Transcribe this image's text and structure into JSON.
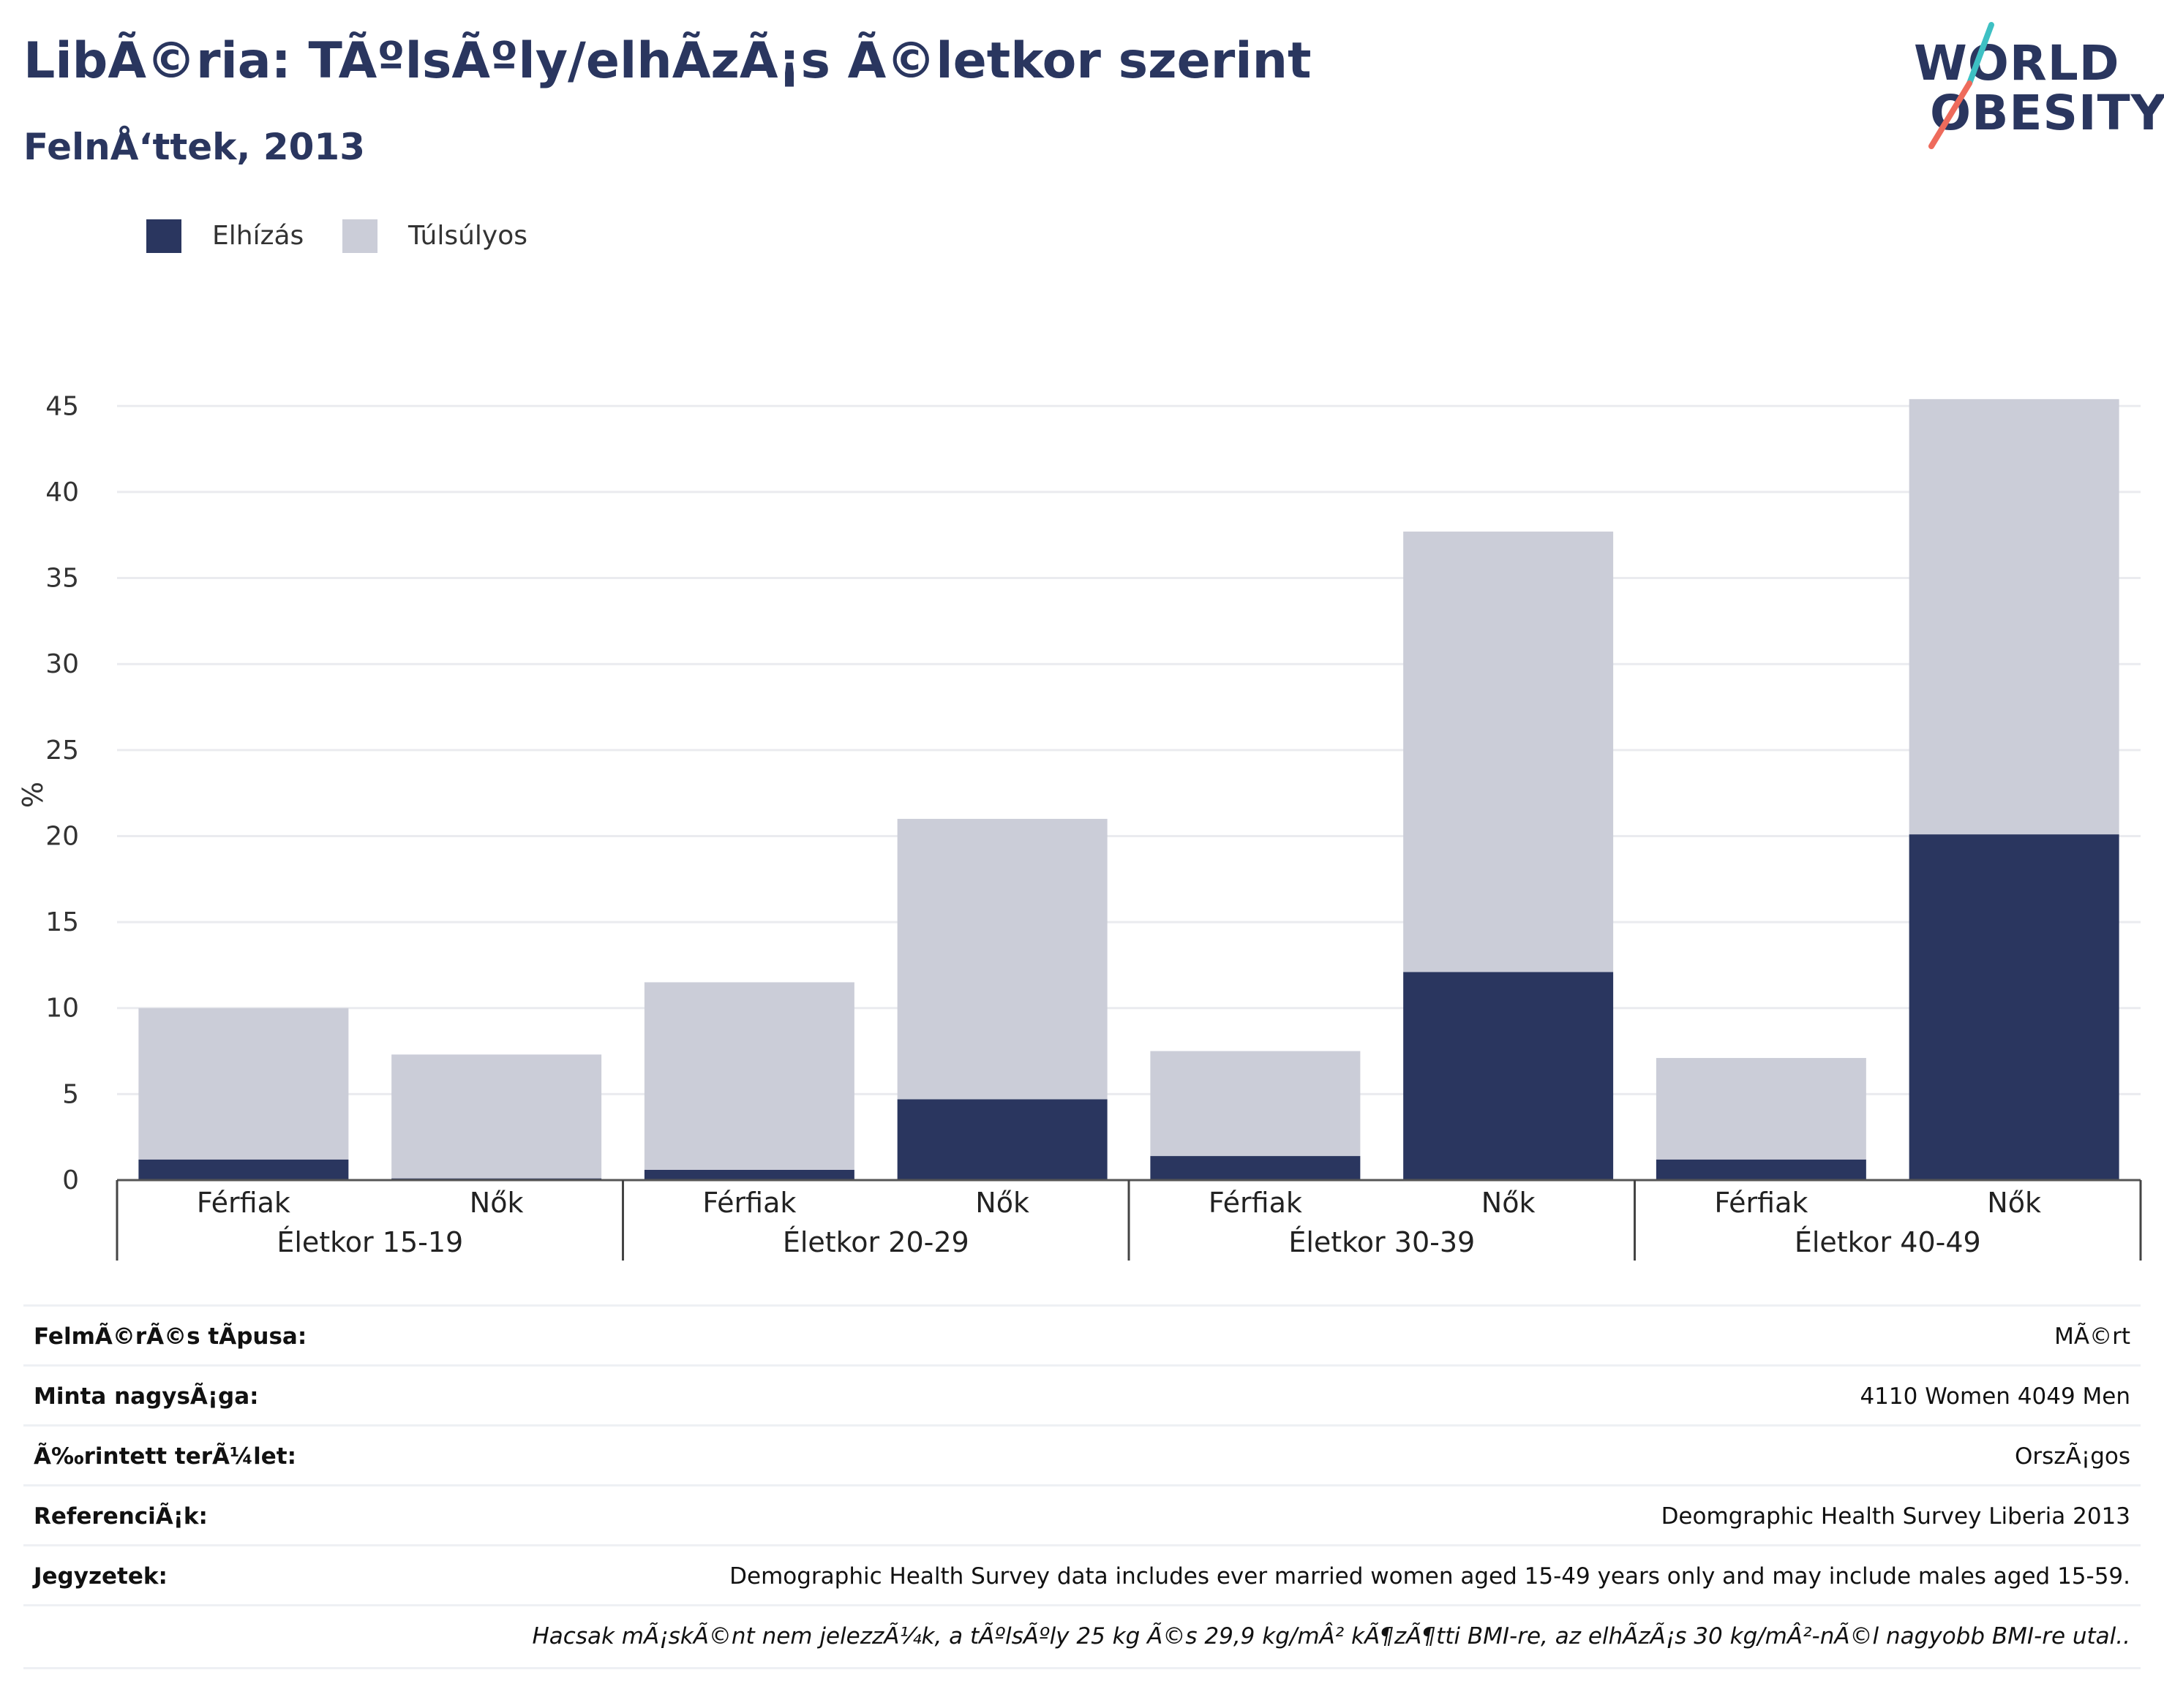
{
  "header": {
    "title": "LibÃ©ria: TÃºlsÃºly/elhÃ­zÃ¡s Ã©letkor szerint",
    "subtitle": "FelnÅ‘ttek, 2013"
  },
  "logo": {
    "line1": "WORLD",
    "line2": "OBESITY",
    "colors": {
      "text": "#2a365f",
      "accent_teal": "#3ec0c3",
      "accent_coral": "#ee6b5c"
    }
  },
  "legend": {
    "items": [
      {
        "label": "Elhízás",
        "color": "#2a365f"
      },
      {
        "label": "Túlsúlyos",
        "color": "#cbcdd8"
      }
    ]
  },
  "chart_data": {
    "type": "bar",
    "stacked": true,
    "ylabel": "%",
    "ylim": [
      0,
      46.5
    ],
    "yticks": [
      0,
      5,
      10,
      15,
      20,
      25,
      30,
      35,
      40,
      45
    ],
    "grid": true,
    "legend_position": "top-left",
    "groups": [
      "Életkor 15-19",
      "Életkor 20-29",
      "Életkor 30-39",
      "Életkor 40-49"
    ],
    "categories": [
      "Férfiak",
      "Nők",
      "Férfiak",
      "Nők",
      "Férfiak",
      "Nők",
      "Férfiak",
      "Nők"
    ],
    "series": [
      {
        "name": "Elhízás",
        "color": "#2a365f",
        "values": [
          1.2,
          0.1,
          0.6,
          4.7,
          1.4,
          12.1,
          1.2,
          20.1
        ]
      },
      {
        "name": "Túlsúlyos",
        "color": "#cbcdd8",
        "values": [
          8.8,
          7.2,
          10.9,
          16.3,
          6.1,
          25.6,
          5.9,
          25.3
        ]
      }
    ]
  },
  "meta": {
    "rows": [
      {
        "key": "FelmÃ©rÃ©s tÃpusa:",
        "value": "MÃ©rt"
      },
      {
        "key": "Minta nagysÃ¡ga:",
        "value": "4110 Women 4049 Men"
      },
      {
        "key": "Ã‰rintett terÃ¼let:",
        "value": "OrszÃ¡gos"
      },
      {
        "key": "ReferenciÃ¡k:",
        "value": "Deomgraphic Health Survey Liberia 2013"
      },
      {
        "key": "Jegyzetek:",
        "value": "Demographic Health Survey data includes ever married women aged 15-49 years only and may include males aged 15-59."
      }
    ],
    "footnote": "Hacsak mÃ¡skÃ©nt nem jelezzÃ¼k, a tÃºlsÃºly 25 kg Ã©s 29,9 kg/mÂ² kÃ¶zÃ¶tti BMI-re, az elhÃ­zÃ¡s 30 kg/mÂ²-nÃ©l nagyobb BMI-re utal.."
  }
}
